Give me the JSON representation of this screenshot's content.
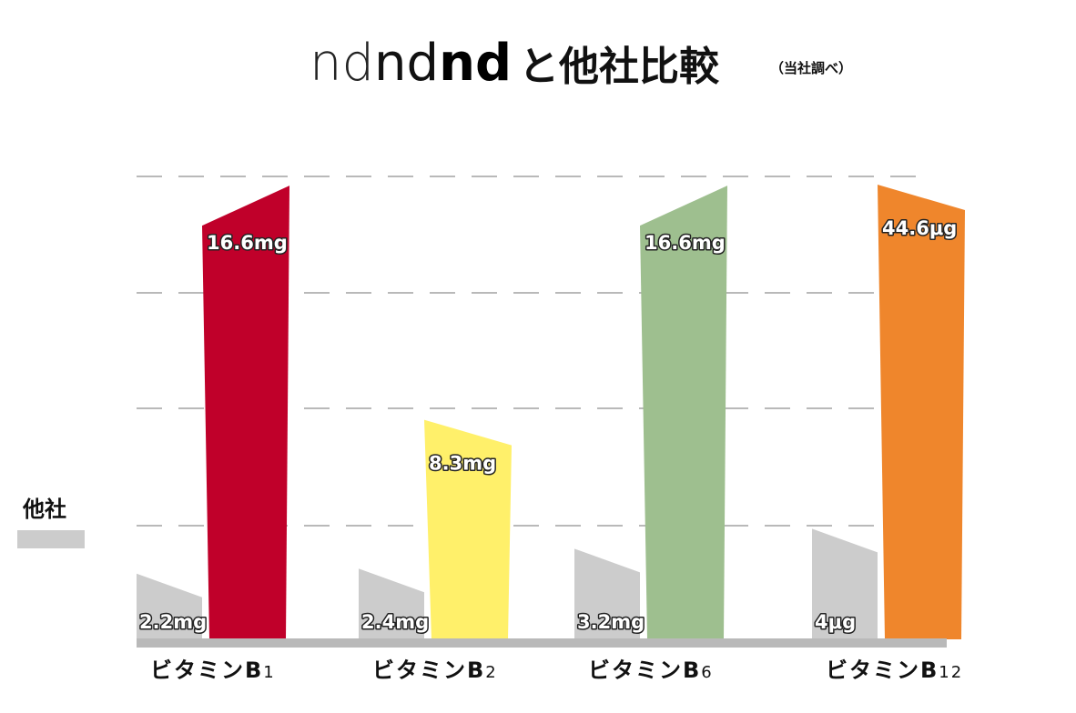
{
  "chart_data": {
    "type": "bar",
    "title_parts": [
      "nd",
      "nd",
      "nd",
      "と他社比較"
    ],
    "subtitle": "（当社調べ）",
    "categories": [
      {
        "main": "ビタミンB",
        "sub": "1"
      },
      {
        "main": "ビタミンB",
        "sub": "2"
      },
      {
        "main": "ビタミンB",
        "sub": "6"
      },
      {
        "main": "ビタミンB",
        "sub": "12"
      }
    ],
    "series": [
      {
        "name": "他社",
        "color": "#cccccc",
        "values": [
          2.2,
          2.4,
          3.2,
          4
        ],
        "labels": [
          "2.2mg",
          "2.4mg",
          "3.2mg",
          "4μg"
        ]
      },
      {
        "colors": [
          "#c0002a",
          "#fff06a",
          "#9ebf8f",
          "#ef862c"
        ],
        "values": [
          16.6,
          8.3,
          16.6,
          44.6
        ],
        "labels": [
          "16.6mg",
          "8.3mg",
          "16.6mg",
          "44.6μg"
        ]
      }
    ],
    "grid": true,
    "legend": "left"
  }
}
